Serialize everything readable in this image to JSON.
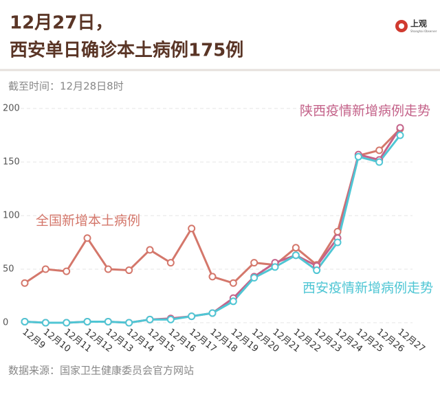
{
  "logo": {
    "name": "上观",
    "sub": "Shanghai Observer"
  },
  "chart_data": {
    "type": "line",
    "title": "12月27日，",
    "subtitle": "西安单日确诊本土病例175例",
    "note": "截至时间：12月28日8时",
    "source": "数据来源：国家卫生健康委员会官方网站",
    "categories": [
      "12月9",
      "12月10",
      "12月11",
      "12月12",
      "12月13",
      "12月14",
      "12月15",
      "12月16",
      "12月17",
      "12月18",
      "12月19",
      "12月20",
      "12月21",
      "12月22",
      "12月23",
      "12月24",
      "12月25",
      "12月26",
      "12月27"
    ],
    "series": [
      {
        "name": "全国新增本土病例",
        "color": "#d4776b",
        "values": [
          37,
          50,
          48,
          79,
          50,
          49,
          68,
          56,
          88,
          43,
          37,
          56,
          54,
          70,
          54,
          85,
          156,
          161,
          181
        ]
      },
      {
        "name": "陕西疫情新增病例走势",
        "color": "#c4638a",
        "values": [
          1,
          0,
          0,
          1,
          1,
          0,
          3,
          4,
          6,
          9,
          23,
          43,
          56,
          63,
          53,
          79,
          157,
          152,
          182
        ]
      },
      {
        "name": "西安疫情新增病例走势",
        "color": "#4fc6d4",
        "values": [
          1,
          0,
          0,
          1,
          1,
          0,
          3,
          3,
          6,
          9,
          20,
          42,
          52,
          63,
          49,
          75,
          155,
          150,
          175
        ]
      }
    ],
    "ylim": [
      0,
      200
    ],
    "yticks": [
      0,
      50,
      100,
      150,
      200
    ],
    "grid": true
  }
}
